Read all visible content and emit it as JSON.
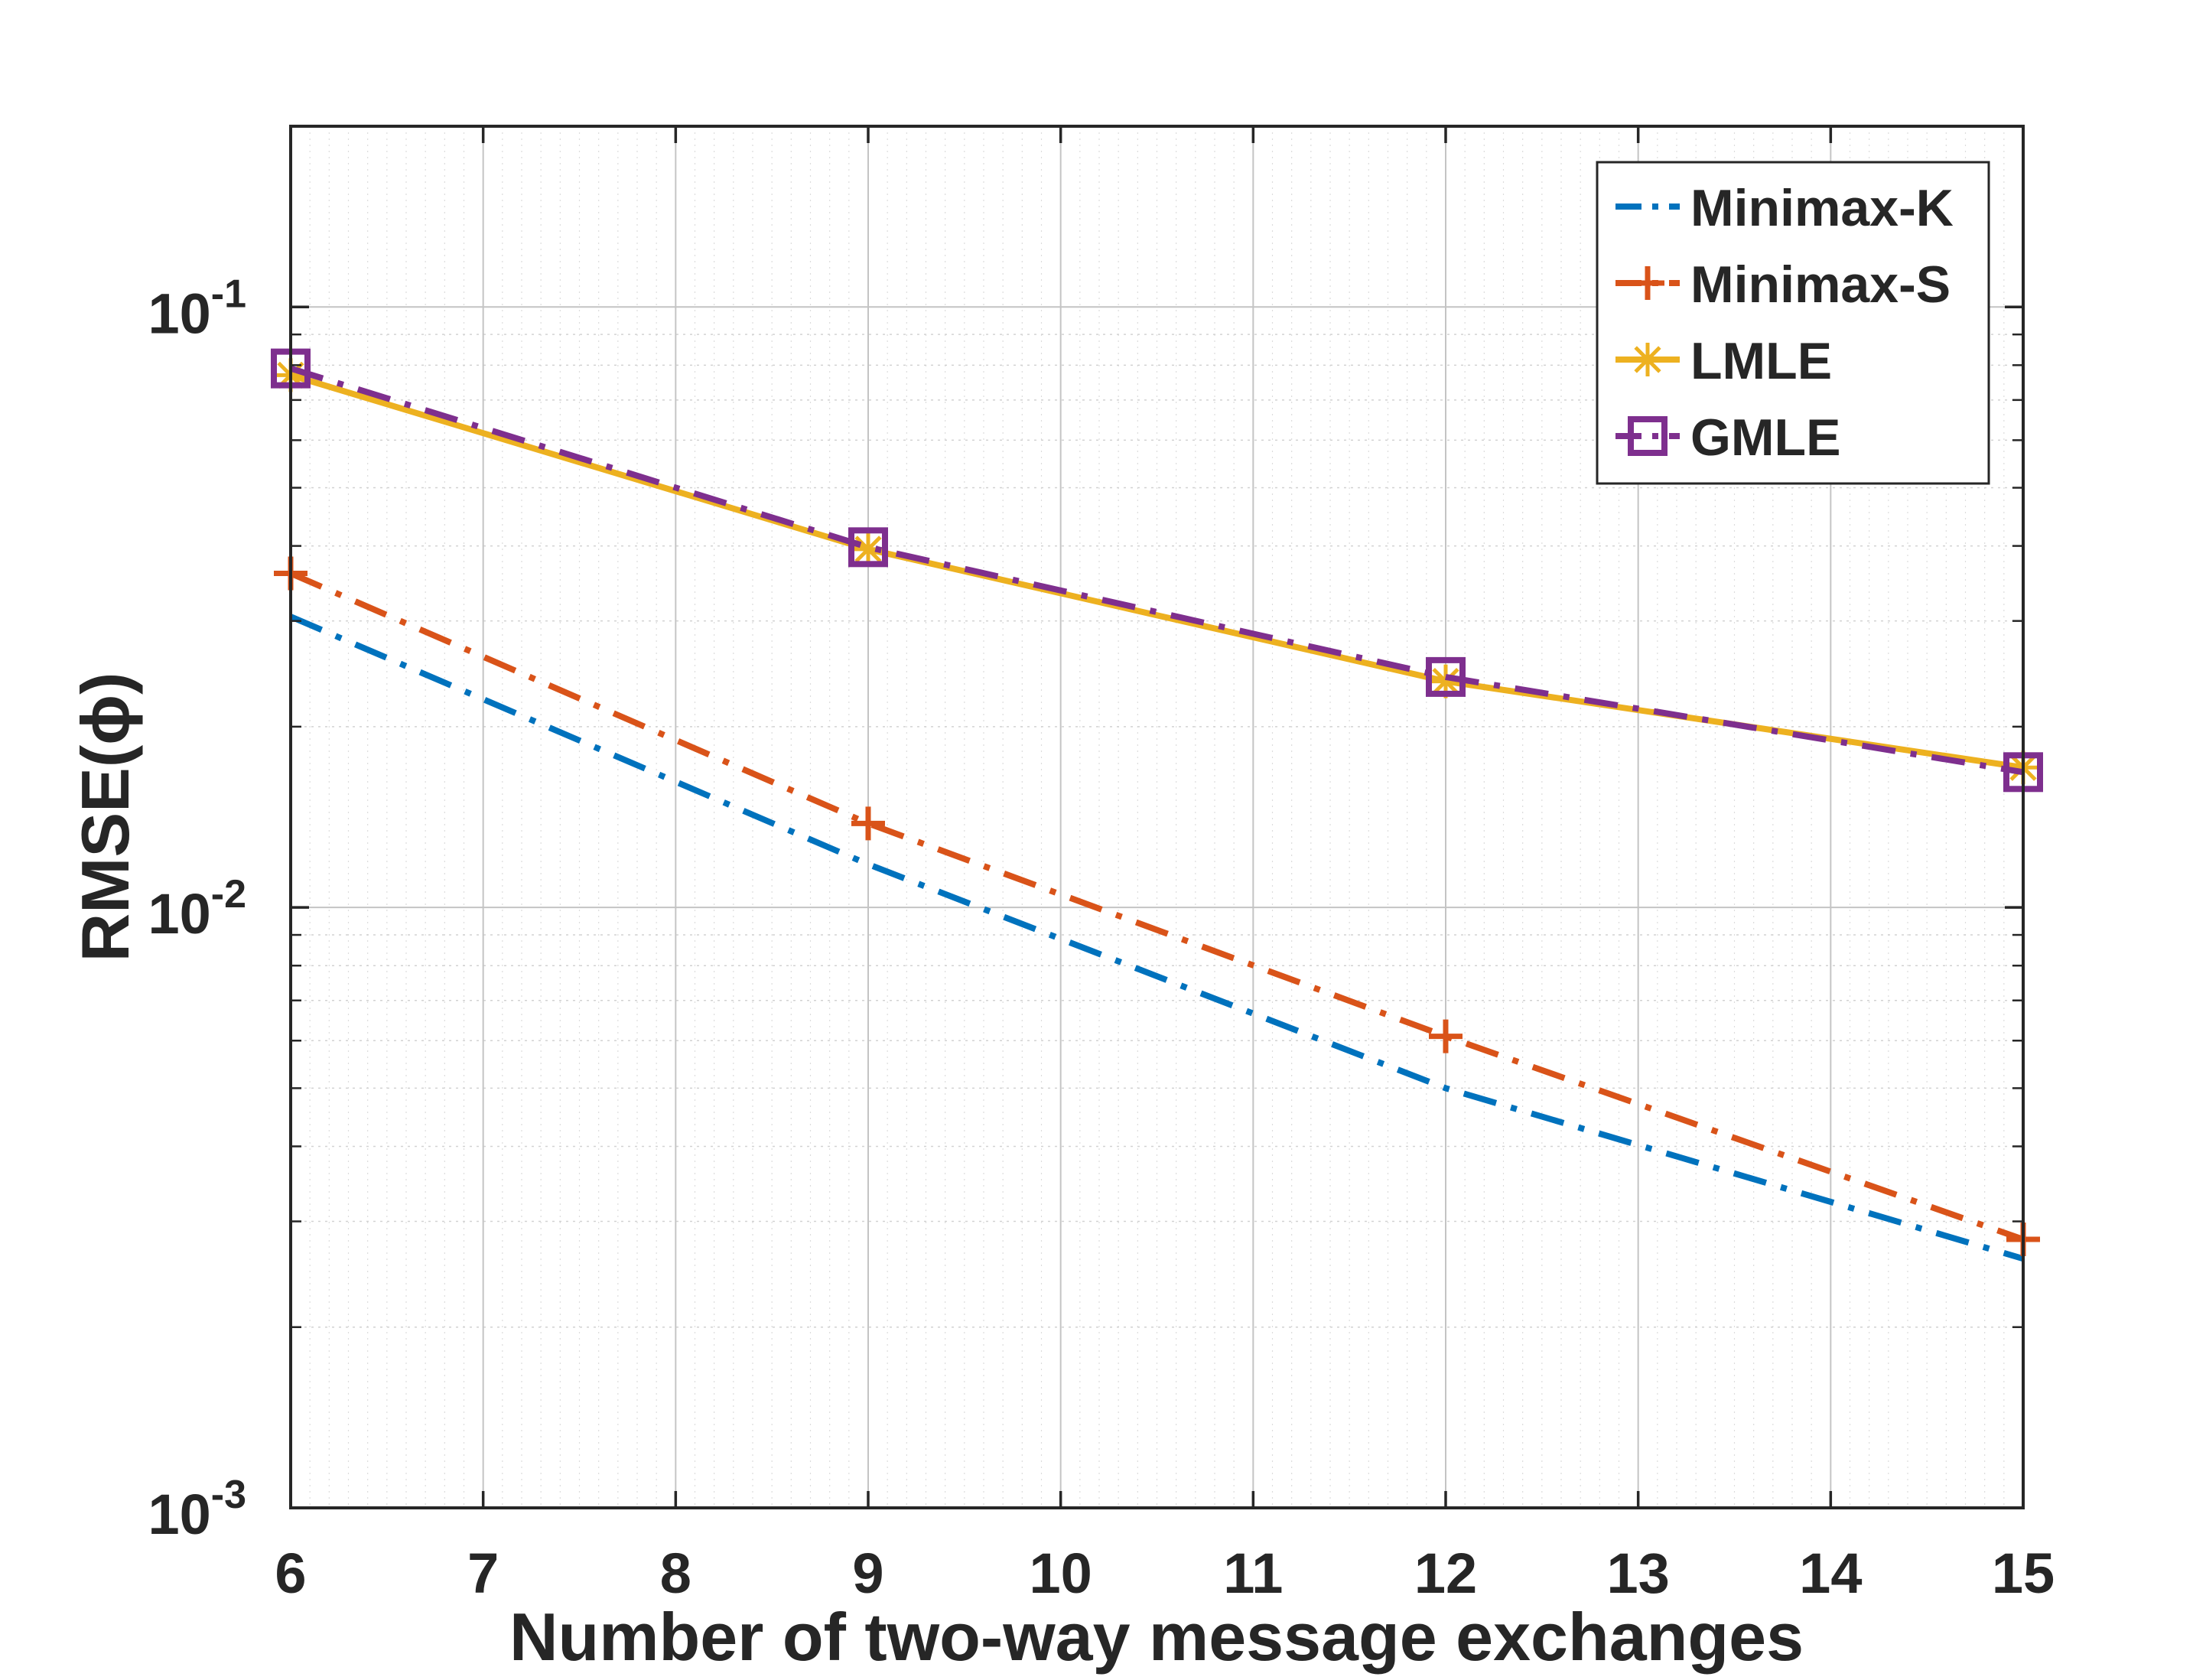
{
  "chart_data": {
    "type": "line",
    "xlabel": "Number of two-way message exchanges",
    "ylabel": "RMSE(ϕ)",
    "x": [
      6,
      9,
      12,
      15
    ],
    "xlim": [
      6,
      15
    ],
    "xticks": [
      "6",
      "7",
      "8",
      "9",
      "10",
      "11",
      "12",
      "13",
      "14",
      "15"
    ],
    "ylim": [
      0.001,
      0.2
    ],
    "yscale": "log",
    "yticks": [
      {
        "base": "10",
        "exp": "-3"
      },
      {
        "base": "10",
        "exp": "-2"
      },
      {
        "base": "10",
        "exp": "-1"
      }
    ],
    "grid": true,
    "minor_grid": true,
    "legend_position": "top-right",
    "series": [
      {
        "name": "Minimax-K",
        "values": [
          0.0305,
          0.0118,
          0.005,
          0.0026
        ],
        "color": "#0072BD",
        "line_style": "dash-dot",
        "marker": "none"
      },
      {
        "name": "Minimax-S",
        "values": [
          0.036,
          0.0138,
          0.0061,
          0.0028
        ],
        "color": "#D95319",
        "line_style": "dash-dot",
        "marker": "plus"
      },
      {
        "name": "LMLE",
        "values": [
          0.077,
          0.0395,
          0.0238,
          0.0171
        ],
        "color": "#EDB120",
        "line_style": "solid",
        "marker": "asterisk"
      },
      {
        "name": "GMLE",
        "values": [
          0.079,
          0.0398,
          0.0242,
          0.0168
        ],
        "color": "#7E2F8E",
        "line_style": "dash-dot",
        "marker": "square"
      }
    ]
  }
}
